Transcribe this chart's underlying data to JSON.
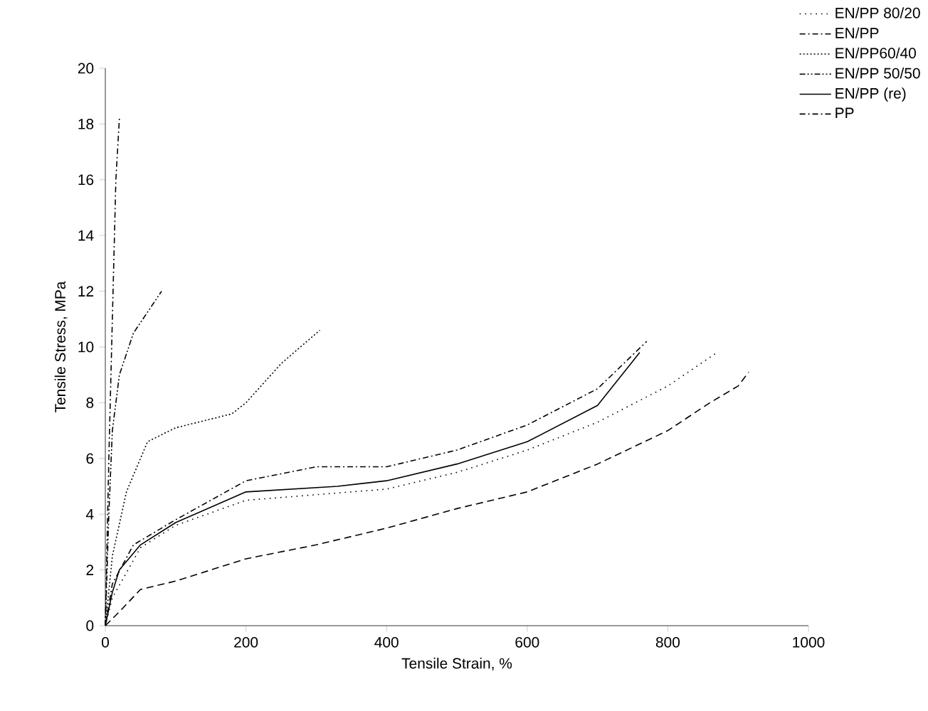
{
  "chart_data": {
    "type": "line",
    "xlabel": "Tensile Strain, %",
    "ylabel": "Tensile Stress, MPa",
    "xlim": [
      0,
      1000
    ],
    "ylim": [
      0,
      20
    ],
    "xticks": [
      0,
      200,
      400,
      600,
      800,
      1000
    ],
    "yticks": [
      0,
      2,
      4,
      6,
      8,
      10,
      12,
      14,
      16,
      18,
      20
    ],
    "grid": false,
    "legend": "top right",
    "marker": "none",
    "series": [
      {
        "color": "#000000",
        "line_style": "dashed",
        "x": [
          0,
          20,
          50,
          100,
          200,
          300,
          400,
          500,
          600,
          700,
          800,
          860,
          900,
          915
        ],
        "values": [
          0,
          0.5,
          1.3,
          1.6,
          2.4,
          2.9,
          3.5,
          4.2,
          4.8,
          5.8,
          7.0,
          8.0,
          8.6,
          9.1
        ]
      },
      {
        "name": "EN/PP 80/20",
        "color": "#000000",
        "line_style": "dotted",
        "x": [
          0,
          10,
          50,
          100,
          200,
          300,
          400,
          500,
          600,
          700,
          800,
          870
        ],
        "values": [
          0,
          1,
          2.8,
          3.6,
          4.5,
          4.7,
          4.9,
          5.5,
          6.3,
          7.3,
          8.6,
          9.8
        ]
      },
      {
        "name": "EN/PP",
        "color": "#000000",
        "line_style": "dashdot",
        "x": [
          0,
          10,
          40,
          100,
          200,
          300,
          400,
          500,
          600,
          700,
          770
        ],
        "values": [
          0,
          1.5,
          2.9,
          3.8,
          5.2,
          5.7,
          5.7,
          6.3,
          7.2,
          8.5,
          10.2
        ]
      },
      {
        "name": "EN/PP60/40",
        "color": "#000000",
        "line_style": "densely dotted",
        "x": [
          0,
          10,
          30,
          60,
          100,
          180,
          200,
          250,
          305
        ],
        "values": [
          0,
          2.5,
          4.8,
          6.6,
          7.1,
          7.6,
          8.0,
          9.4,
          10.6
        ]
      },
      {
        "name": "EN/PP 50/50",
        "color": "#000000",
        "line_style": "dashdotdot",
        "x": [
          0,
          5,
          10,
          20,
          40,
          80
        ],
        "values": [
          0,
          4,
          7,
          9,
          10.5,
          12
        ]
      },
      {
        "name": "EN/PP (re)",
        "color": "#000000",
        "line_style": "solid",
        "x": [
          0,
          10,
          20,
          50,
          100,
          200,
          330,
          400,
          500,
          600,
          700,
          760
        ],
        "values": [
          0,
          1.2,
          2,
          2.9,
          3.7,
          4.8,
          5.0,
          5.2,
          5.8,
          6.6,
          7.9,
          9.8
        ]
      },
      {
        "name": "PP",
        "color": "#000000",
        "line_style": "dashdot",
        "x": [
          0,
          5,
          10,
          15,
          20
        ],
        "values": [
          0,
          6,
          11,
          16,
          18.2
        ]
      }
    ]
  }
}
